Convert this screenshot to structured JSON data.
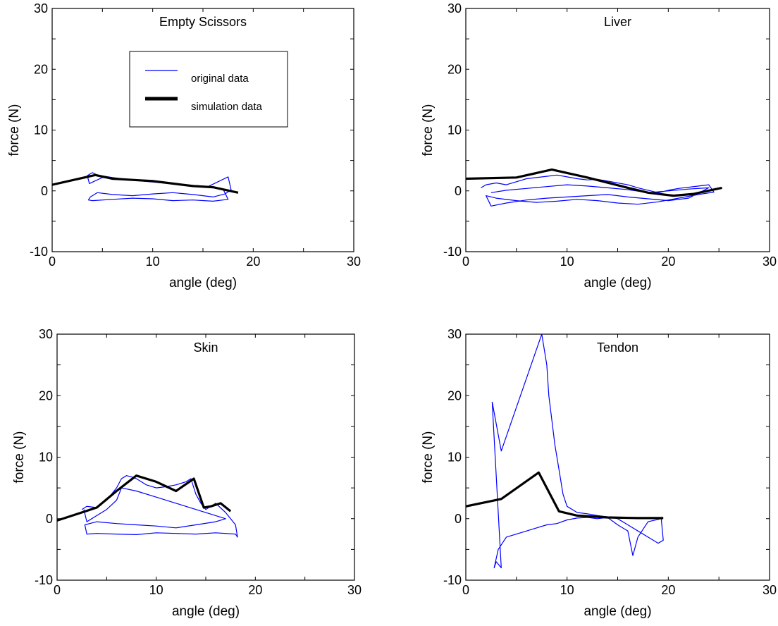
{
  "chart_data": [
    {
      "type": "line",
      "title": "Empty Scissors",
      "xlabel": "angle (deg)",
      "ylabel": "force (N)",
      "xlim": [
        0,
        30
      ],
      "ylim": [
        -10,
        30
      ],
      "xticks": [
        0,
        10,
        20,
        30
      ],
      "yticks": [
        -10,
        0,
        10,
        20,
        30
      ],
      "grid": false,
      "legend": {
        "placement": "upper-center",
        "entries": [
          "original data",
          "simulation data"
        ]
      },
      "series": [
        {
          "name": "original data",
          "color": "#0000ff",
          "x": [
            3.5,
            4.0,
            4.5,
            6,
            8,
            10,
            12,
            14,
            15.5,
            16.5,
            17.5,
            17.8,
            17.2,
            16,
            14,
            12,
            10,
            8,
            6,
            4.5,
            3.8,
            3.6,
            4.0,
            6,
            8,
            10,
            12,
            14,
            16,
            17.5,
            17.0,
            15,
            13,
            11,
            9,
            7,
            5,
            3.7,
            3.5
          ],
          "y": [
            2.5,
            3.0,
            2.6,
            2.2,
            1.8,
            1.5,
            1.2,
            0.9,
            0.7,
            1.5,
            2.3,
            0.2,
            -0.5,
            -1.0,
            -0.6,
            -0.3,
            -0.5,
            -0.8,
            -0.6,
            -0.3,
            -1.0,
            -1.5,
            -1.6,
            -1.4,
            -1.2,
            -1.3,
            -1.6,
            -1.5,
            -1.7,
            -1.4,
            0.3,
            0.8,
            1.0,
            1.3,
            1.6,
            1.9,
            2.2,
            1.2,
            2.5
          ]
        },
        {
          "name": "simulation data",
          "color": "#000000",
          "x": [
            0,
            4.3,
            6,
            8,
            10,
            12,
            14,
            16,
            18.5
          ],
          "y": [
            1.0,
            2.6,
            2.0,
            1.8,
            1.6,
            1.2,
            0.8,
            0.6,
            -0.3
          ]
        }
      ]
    },
    {
      "type": "line",
      "title": "Liver",
      "xlabel": "angle (deg)",
      "ylabel": "force (N)",
      "xlim": [
        0,
        30
      ],
      "ylim": [
        -10,
        30
      ],
      "xticks": [
        0,
        10,
        20,
        30
      ],
      "yticks": [
        -10,
        0,
        10,
        20,
        30
      ],
      "grid": false,
      "series": [
        {
          "name": "original data",
          "color": "#0000ff",
          "x": [
            1.5,
            2,
            3,
            4,
            5,
            6,
            8,
            9,
            10,
            11,
            12,
            13,
            14,
            15,
            16,
            17,
            18,
            19,
            20,
            21,
            22,
            23,
            24,
            24.5,
            23,
            21,
            19,
            17,
            15,
            13,
            11,
            9,
            7,
            5,
            3,
            2,
            2.5,
            4,
            6,
            8,
            10,
            12,
            14,
            16,
            18,
            20,
            22,
            24,
            22,
            20,
            18,
            16,
            14,
            12,
            10,
            8,
            6,
            4,
            2.5
          ],
          "y": [
            0.5,
            1.0,
            1.3,
            1.0,
            1.5,
            2.0,
            2.4,
            2.6,
            2.3,
            2.0,
            1.8,
            1.9,
            1.6,
            1.3,
            1.0,
            0.5,
            0.1,
            -0.3,
            0.1,
            0.4,
            0.6,
            0.8,
            1.0,
            -0.2,
            -0.6,
            -1.2,
            -1.8,
            -2.2,
            -2.0,
            -1.6,
            -1.4,
            -1.7,
            -1.9,
            -1.6,
            -1.2,
            -0.8,
            -2.5,
            -2.0,
            -1.5,
            -1.2,
            -1.0,
            -0.8,
            -0.6,
            -1.0,
            -1.3,
            -1.6,
            -1.2,
            0.5,
            0.3,
            0.0,
            -0.3,
            0.2,
            0.5,
            0.8,
            1.0,
            0.7,
            0.4,
            0.1,
            -0.3
          ]
        },
        {
          "name": "simulation data",
          "color": "#000000",
          "x": [
            0,
            5,
            8.5,
            12,
            16,
            18,
            20.5,
            22.5,
            25.3
          ],
          "y": [
            2.0,
            2.2,
            3.5,
            2.2,
            0.5,
            -0.3,
            -0.8,
            -0.5,
            0.5
          ]
        }
      ]
    },
    {
      "type": "line",
      "title": "Skin",
      "xlabel": "angle (deg)",
      "ylabel": "force (N)",
      "xlim": [
        0,
        30
      ],
      "ylim": [
        -10,
        30
      ],
      "xticks": [
        0,
        10,
        20,
        30
      ],
      "yticks": [
        -10,
        0,
        10,
        20,
        30
      ],
      "grid": false,
      "series": [
        {
          "name": "original data",
          "color": "#0000ff",
          "x": [
            2.5,
            3,
            4,
            5,
            6,
            6.5,
            7,
            7.5,
            8,
            9,
            10,
            11,
            12,
            13,
            13.5,
            14,
            14.5,
            15,
            16,
            17,
            17.5,
            18,
            18.2,
            18,
            16,
            14,
            12,
            10,
            8,
            6,
            4,
            3,
            2.8,
            4,
            6,
            8,
            10,
            12,
            14,
            16,
            17,
            16,
            14,
            12,
            10,
            8,
            6.5,
            6,
            5,
            4,
            3,
            2.7
          ],
          "y": [
            1.5,
            2.0,
            1.8,
            3.0,
            5.0,
            6.5,
            7.0,
            6.8,
            6.5,
            5.5,
            5.0,
            5.2,
            5.5,
            6.0,
            6.5,
            4.0,
            2.5,
            1.5,
            2.5,
            1.0,
            0.0,
            -1.0,
            -3.0,
            -2.5,
            -2.3,
            -2.5,
            -2.4,
            -2.3,
            -2.6,
            -2.5,
            -2.4,
            -2.5,
            -1.0,
            -0.5,
            -0.8,
            -1.0,
            -1.2,
            -1.5,
            -1.0,
            -0.5,
            0.0,
            0.5,
            1.5,
            2.5,
            3.5,
            4.5,
            5.0,
            3.0,
            1.5,
            0.5,
            -0.5,
            1.5
          ]
        },
        {
          "name": "simulation data",
          "color": "#000000",
          "x": [
            0,
            4,
            6,
            8,
            10,
            12,
            13.8,
            14.8,
            15.5,
            16.5,
            17.5
          ],
          "y": [
            -0.3,
            1.8,
            4.5,
            7.0,
            6.0,
            4.5,
            6.5,
            1.8,
            2.0,
            2.5,
            1.2
          ]
        }
      ]
    },
    {
      "type": "line",
      "title": "Tendon",
      "xlabel": "angle (deg)",
      "ylabel": "force (N)",
      "xlim": [
        0,
        30
      ],
      "ylim": [
        -10,
        30
      ],
      "xticks": [
        0,
        10,
        20,
        30
      ],
      "yticks": [
        -10,
        0,
        10,
        20,
        30
      ],
      "grid": false,
      "series": [
        {
          "name": "original data",
          "color": "#0000ff",
          "x": [
            2.6,
            3.5,
            7.5,
            8.0,
            8.2,
            8.5,
            8.8,
            9.2,
            9.6,
            10,
            11,
            12,
            13,
            14,
            15,
            16,
            17,
            18,
            19,
            19.5,
            19.3,
            18,
            17,
            16.5,
            16,
            15,
            14,
            13,
            12,
            11,
            10,
            9,
            8,
            7,
            6,
            5,
            4,
            3.2,
            2.8,
            3.0,
            3.5,
            2.6
          ],
          "y": [
            19.0,
            11.0,
            30.0,
            25.0,
            20.0,
            16.0,
            12.0,
            8.0,
            4.0,
            2.0,
            1.0,
            0.8,
            0.5,
            0.3,
            0.0,
            -1.0,
            -2.0,
            -3.0,
            -4.0,
            -3.5,
            0.0,
            -0.5,
            -3.0,
            -6.0,
            -2.0,
            -1.0,
            0.2,
            0.0,
            0.2,
            0.1,
            -0.2,
            -0.8,
            -1.0,
            -1.5,
            -2.0,
            -2.5,
            -3.0,
            -5.0,
            -8.0,
            -7.0,
            -8.0,
            19.0
          ]
        },
        {
          "name": "simulation data",
          "color": "#000000",
          "x": [
            0,
            3.5,
            7.2,
            9.2,
            11,
            14,
            17,
            19.5
          ],
          "y": [
            2.0,
            3.2,
            7.5,
            1.2,
            0.5,
            0.2,
            0.1,
            0.1
          ]
        }
      ]
    }
  ]
}
